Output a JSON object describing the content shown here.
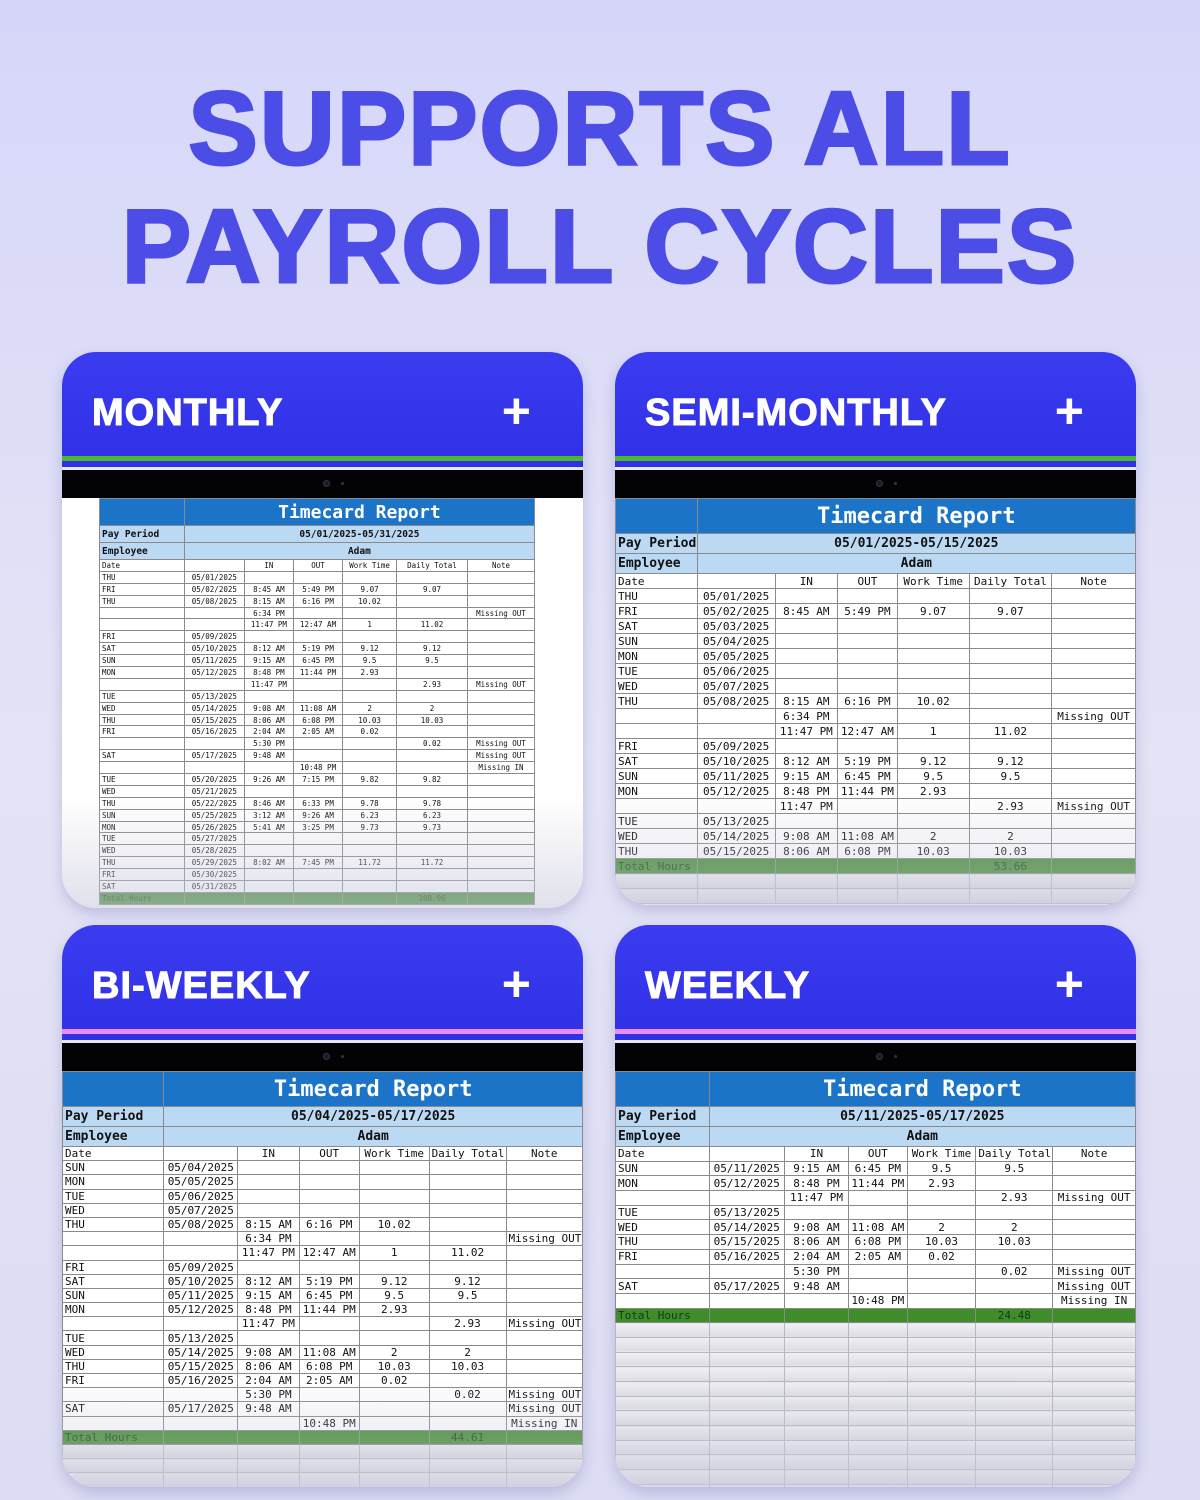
{
  "headline": {
    "line1": "SUPPORTS ALL",
    "line2": "PAYROLL CYCLES",
    "color": "#4b4de6"
  },
  "colors": {
    "card_header": "#3434ea",
    "title_row": "#1b74c8",
    "meta_row": "#bcd9f4",
    "total_row": "#3f8c2b",
    "stripe_green": "#4cb82c",
    "stripe_pink": "#e98ef0"
  },
  "labels": {
    "report_title": "Timecard Report",
    "pay_period": "Pay Period",
    "employee": "Employee",
    "columns": [
      "Date",
      "",
      "IN",
      "OUT",
      "Work Time",
      "Daily Total",
      "Note"
    ],
    "total": "Total Hours"
  },
  "cards": [
    {
      "name": "MONTHLY",
      "icon": "plus-icon",
      "stripe": "#4cb82c",
      "pay_period": "05/01/2025-05/31/2025",
      "employee": "Adam",
      "total": "100.96",
      "rows": [
        [
          "THU",
          "05/01/2025",
          "",
          "",
          "",
          "",
          ""
        ],
        [
          "FRI",
          "05/02/2025",
          "8:45 AM",
          "5:49 PM",
          "9.07",
          "9.07",
          ""
        ],
        [
          "THU",
          "05/08/2025",
          "8:15 AM",
          "6:16 PM",
          "10.02",
          "",
          ""
        ],
        [
          "",
          "",
          "6:34 PM",
          "",
          "",
          "",
          "Missing OUT"
        ],
        [
          "",
          "",
          "11:47 PM",
          "12:47 AM",
          "1",
          "11.02",
          ""
        ],
        [
          "FRI",
          "05/09/2025",
          "",
          "",
          "",
          "",
          ""
        ],
        [
          "SAT",
          "05/10/2025",
          "8:12 AM",
          "5:19 PM",
          "9.12",
          "9.12",
          ""
        ],
        [
          "SUN",
          "05/11/2025",
          "9:15 AM",
          "6:45 PM",
          "9.5",
          "9.5",
          ""
        ],
        [
          "MON",
          "05/12/2025",
          "8:48 PM",
          "11:44 PM",
          "2.93",
          "",
          ""
        ],
        [
          "",
          "",
          "11:47 PM",
          "",
          "",
          "2.93",
          "Missing OUT"
        ],
        [
          "TUE",
          "05/13/2025",
          "",
          "",
          "",
          "",
          ""
        ],
        [
          "WED",
          "05/14/2025",
          "9:08 AM",
          "11:08 AM",
          "2",
          "2",
          ""
        ],
        [
          "THU",
          "05/15/2025",
          "8:06 AM",
          "6:08 PM",
          "10.03",
          "10.03",
          ""
        ],
        [
          "FRI",
          "05/16/2025",
          "2:04 AM",
          "2:05 AM",
          "0.02",
          "",
          ""
        ],
        [
          "",
          "",
          "5:30 PM",
          "",
          "",
          "0.02",
          "Missing OUT"
        ],
        [
          "SAT",
          "05/17/2025",
          "9:48 AM",
          "",
          "",
          "",
          "Missing OUT"
        ],
        [
          "",
          "",
          "",
          "10:48 PM",
          "",
          "",
          "Missing IN"
        ],
        [
          "TUE",
          "05/20/2025",
          "9:26 AM",
          "7:15 PM",
          "9.82",
          "9.82",
          ""
        ],
        [
          "WED",
          "05/21/2025",
          "",
          "",
          "",
          "",
          ""
        ],
        [
          "THU",
          "05/22/2025",
          "8:46 AM",
          "6:33 PM",
          "9.78",
          "9.78",
          ""
        ],
        [
          "SUN",
          "05/25/2025",
          "3:12 AM",
          "9:26 AM",
          "6.23",
          "6.23",
          ""
        ],
        [
          "MON",
          "05/26/2025",
          "5:41 AM",
          "3:25 PM",
          "9.73",
          "9.73",
          ""
        ],
        [
          "TUE",
          "05/27/2025",
          "",
          "",
          "",
          "",
          ""
        ],
        [
          "WED",
          "05/28/2025",
          "",
          "",
          "",
          "",
          ""
        ],
        [
          "THU",
          "05/29/2025",
          "8:02 AM",
          "7:45 PM",
          "11.72",
          "11.72",
          ""
        ],
        [
          "FRI",
          "05/30/2025",
          "",
          "",
          "",
          "",
          ""
        ],
        [
          "SAT",
          "05/31/2025",
          "",
          "",
          "",
          "",
          ""
        ]
      ]
    },
    {
      "name": "SEMI-MONTHLY",
      "icon": "plus-icon",
      "stripe": "#4cb82c",
      "pay_period": "05/01/2025-05/15/2025",
      "employee": "Adam",
      "total": "53.66",
      "rows": [
        [
          "THU",
          "05/01/2025",
          "",
          "",
          "",
          "",
          ""
        ],
        [
          "FRI",
          "05/02/2025",
          "8:45 AM",
          "5:49 PM",
          "9.07",
          "9.07",
          ""
        ],
        [
          "SAT",
          "05/03/2025",
          "",
          "",
          "",
          "",
          ""
        ],
        [
          "SUN",
          "05/04/2025",
          "",
          "",
          "",
          "",
          ""
        ],
        [
          "MON",
          "05/05/2025",
          "",
          "",
          "",
          "",
          ""
        ],
        [
          "TUE",
          "05/06/2025",
          "",
          "",
          "",
          "",
          ""
        ],
        [
          "WED",
          "05/07/2025",
          "",
          "",
          "",
          "",
          ""
        ],
        [
          "THU",
          "05/08/2025",
          "8:15 AM",
          "6:16 PM",
          "10.02",
          "",
          ""
        ],
        [
          "",
          "",
          "6:34 PM",
          "",
          "",
          "",
          "Missing OUT"
        ],
        [
          "",
          "",
          "11:47 PM",
          "12:47 AM",
          "1",
          "11.02",
          ""
        ],
        [
          "FRI",
          "05/09/2025",
          "",
          "",
          "",
          "",
          ""
        ],
        [
          "SAT",
          "05/10/2025",
          "8:12 AM",
          "5:19 PM",
          "9.12",
          "9.12",
          ""
        ],
        [
          "SUN",
          "05/11/2025",
          "9:15 AM",
          "6:45 PM",
          "9.5",
          "9.5",
          ""
        ],
        [
          "MON",
          "05/12/2025",
          "8:48 PM",
          "11:44 PM",
          "2.93",
          "",
          ""
        ],
        [
          "",
          "",
          "11:47 PM",
          "",
          "",
          "2.93",
          "Missing OUT"
        ],
        [
          "TUE",
          "05/13/2025",
          "",
          "",
          "",
          "",
          ""
        ],
        [
          "WED",
          "05/14/2025",
          "9:08 AM",
          "11:08 AM",
          "2",
          "2",
          ""
        ],
        [
          "THU",
          "05/15/2025",
          "8:06 AM",
          "6:08 PM",
          "10.03",
          "10.03",
          ""
        ]
      ]
    },
    {
      "name": "BI-WEEKLY",
      "icon": "plus-icon",
      "stripe": "#e98ef0",
      "pay_period": "05/04/2025-05/17/2025",
      "employee": "Adam",
      "total": "44.61",
      "rows": [
        [
          "SUN",
          "05/04/2025",
          "",
          "",
          "",
          "",
          ""
        ],
        [
          "MON",
          "05/05/2025",
          "",
          "",
          "",
          "",
          ""
        ],
        [
          "TUE",
          "05/06/2025",
          "",
          "",
          "",
          "",
          ""
        ],
        [
          "WED",
          "05/07/2025",
          "",
          "",
          "",
          "",
          ""
        ],
        [
          "THU",
          "05/08/2025",
          "8:15 AM",
          "6:16 PM",
          "10.02",
          "",
          ""
        ],
        [
          "",
          "",
          "6:34 PM",
          "",
          "",
          "",
          "Missing OUT"
        ],
        [
          "",
          "",
          "11:47 PM",
          "12:47 AM",
          "1",
          "11.02",
          ""
        ],
        [
          "FRI",
          "05/09/2025",
          "",
          "",
          "",
          "",
          ""
        ],
        [
          "SAT",
          "05/10/2025",
          "8:12 AM",
          "5:19 PM",
          "9.12",
          "9.12",
          ""
        ],
        [
          "SUN",
          "05/11/2025",
          "9:15 AM",
          "6:45 PM",
          "9.5",
          "9.5",
          ""
        ],
        [
          "MON",
          "05/12/2025",
          "8:48 PM",
          "11:44 PM",
          "2.93",
          "",
          ""
        ],
        [
          "",
          "",
          "11:47 PM",
          "",
          "",
          "2.93",
          "Missing OUT"
        ],
        [
          "TUE",
          "05/13/2025",
          "",
          "",
          "",
          "",
          ""
        ],
        [
          "WED",
          "05/14/2025",
          "9:08 AM",
          "11:08 AM",
          "2",
          "2",
          ""
        ],
        [
          "THU",
          "05/15/2025",
          "8:06 AM",
          "6:08 PM",
          "10.03",
          "10.03",
          ""
        ],
        [
          "FRI",
          "05/16/2025",
          "2:04 AM",
          "2:05 AM",
          "0.02",
          "",
          ""
        ],
        [
          "",
          "",
          "5:30 PM",
          "",
          "",
          "0.02",
          "Missing OUT"
        ],
        [
          "SAT",
          "05/17/2025",
          "9:48 AM",
          "",
          "",
          "",
          "Missing OUT"
        ],
        [
          "",
          "",
          "",
          "10:48 PM",
          "",
          "",
          "Missing IN"
        ]
      ]
    },
    {
      "name": "WEEKLY",
      "icon": "plus-icon",
      "stripe": "#e98ef0",
      "pay_period": "05/11/2025-05/17/2025",
      "employee": "Adam",
      "total": "24.48",
      "rows": [
        [
          "SUN",
          "05/11/2025",
          "9:15 AM",
          "6:45 PM",
          "9.5",
          "9.5",
          ""
        ],
        [
          "MON",
          "05/12/2025",
          "8:48 PM",
          "11:44 PM",
          "2.93",
          "",
          ""
        ],
        [
          "",
          "",
          "11:47 PM",
          "",
          "",
          "2.93",
          "Missing OUT"
        ],
        [
          "TUE",
          "05/13/2025",
          "",
          "",
          "",
          "",
          ""
        ],
        [
          "WED",
          "05/14/2025",
          "9:08 AM",
          "11:08 AM",
          "2",
          "2",
          ""
        ],
        [
          "THU",
          "05/15/2025",
          "8:06 AM",
          "6:08 PM",
          "10.03",
          "10.03",
          ""
        ],
        [
          "FRI",
          "05/16/2025",
          "2:04 AM",
          "2:05 AM",
          "0.02",
          "",
          ""
        ],
        [
          "",
          "",
          "5:30 PM",
          "",
          "",
          "0.02",
          "Missing OUT"
        ],
        [
          "SAT",
          "05/17/2025",
          "9:48 AM",
          "",
          "",
          "",
          "Missing OUT"
        ],
        [
          "",
          "",
          "",
          "10:48 PM",
          "",
          "",
          "Missing IN"
        ]
      ]
    }
  ]
}
